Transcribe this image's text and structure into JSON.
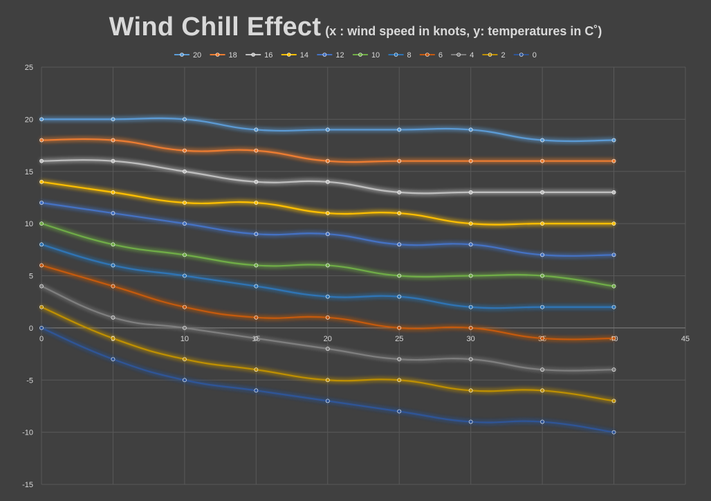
{
  "chart_data": {
    "type": "line",
    "title": "Wind Chill Effect",
    "subtitle": "(x : wind speed in knots, y: temperatures in C˚)",
    "xlabel": "",
    "ylabel": "",
    "x": [
      0,
      5,
      10,
      15,
      20,
      25,
      30,
      35,
      40
    ],
    "xlim": [
      0,
      45
    ],
    "ylim": [
      -15,
      25
    ],
    "xticks": [
      0,
      5,
      10,
      15,
      20,
      25,
      30,
      35,
      40,
      45
    ],
    "yticks": [
      -15,
      -10,
      -5,
      0,
      5,
      10,
      15,
      20,
      25
    ],
    "grid": true,
    "legend_position": "top",
    "smooth": true,
    "series": [
      {
        "name": "20",
        "color": "#5b9bd5",
        "values": [
          20,
          20,
          20,
          19,
          19,
          19,
          19,
          18,
          18
        ]
      },
      {
        "name": "18",
        "color": "#ed7d31",
        "values": [
          18,
          18,
          17,
          17,
          16,
          16,
          16,
          16,
          16
        ]
      },
      {
        "name": "16",
        "color": "#bfbfbf",
        "values": [
          16,
          16,
          15,
          14,
          14,
          13,
          13,
          13,
          13
        ]
      },
      {
        "name": "14",
        "color": "#ffc000",
        "values": [
          14,
          13,
          12,
          12,
          11,
          11,
          10,
          10,
          10
        ]
      },
      {
        "name": "12",
        "color": "#4472c4",
        "values": [
          12,
          11,
          10,
          9,
          9,
          8,
          8,
          7,
          7
        ]
      },
      {
        "name": "10",
        "color": "#70ad47",
        "values": [
          10,
          8,
          7,
          6,
          6,
          5,
          5,
          5,
          4
        ]
      },
      {
        "name": "8",
        "color": "#2e75b6",
        "values": [
          8,
          6,
          5,
          4,
          3,
          3,
          2,
          2,
          2
        ]
      },
      {
        "name": "6",
        "color": "#c55a11",
        "values": [
          6,
          4,
          2,
          1,
          1,
          0,
          0,
          -1,
          -1
        ]
      },
      {
        "name": "4",
        "color": "#7f7f7f",
        "values": [
          4,
          1,
          0,
          -1,
          -2,
          -3,
          -3,
          -4,
          -4
        ]
      },
      {
        "name": "2",
        "color": "#bf9000",
        "values": [
          2,
          -1,
          -3,
          -4,
          -5,
          -5,
          -6,
          -6,
          -7
        ]
      },
      {
        "name": "0",
        "color": "#2f5597",
        "values": [
          0,
          -3,
          -5,
          -6,
          -7,
          -8,
          -9,
          -9,
          -10
        ]
      }
    ]
  }
}
